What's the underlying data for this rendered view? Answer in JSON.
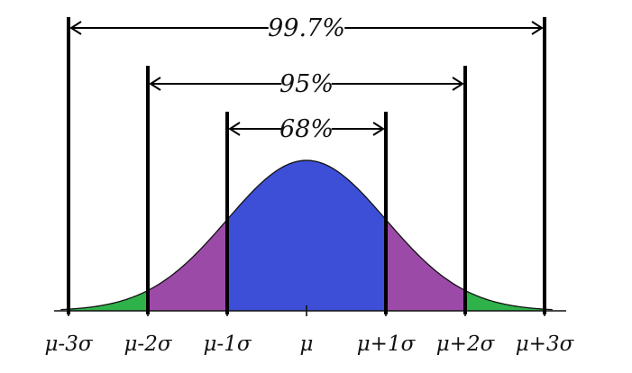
{
  "chart_data": {
    "type": "area",
    "title": "",
    "xlabel": "",
    "ylabel": "",
    "x_range": [
      -3.1,
      3.1
    ],
    "grid": false,
    "tick_labels": [
      "μ-3σ",
      "μ-2σ",
      "μ-1σ",
      "μ",
      "μ+1σ",
      "μ+2σ",
      "μ+3σ"
    ],
    "regions": [
      {
        "from": -3,
        "to": -2,
        "color": "#2fb24a"
      },
      {
        "from": -2,
        "to": -1,
        "color": "#9c4aa8"
      },
      {
        "from": -1,
        "to": 1,
        "color": "#3d4fd6"
      },
      {
        "from": 1,
        "to": 2,
        "color": "#9c4aa8"
      },
      {
        "from": 2,
        "to": 3,
        "color": "#2fb24a"
      }
    ],
    "brackets": [
      {
        "label": "68%",
        "from": -1,
        "to": 1
      },
      {
        "label": "95%",
        "from": -2,
        "to": 2
      },
      {
        "label": "99.7%",
        "from": -3,
        "to": 3
      }
    ]
  }
}
